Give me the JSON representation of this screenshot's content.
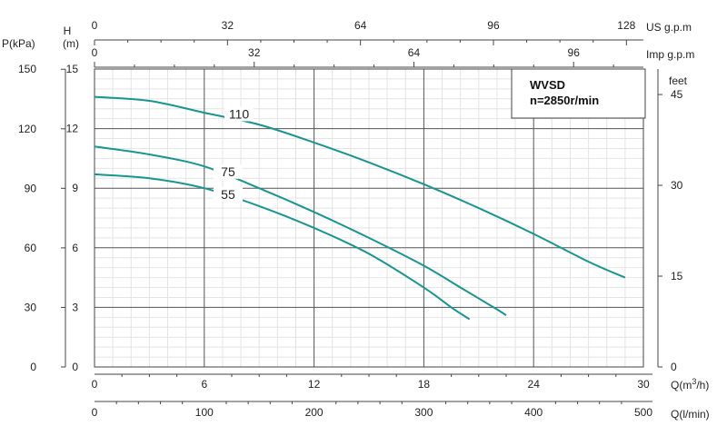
{
  "chart_data": {
    "type": "line",
    "title": "WVSD",
    "subtitle": "n=2850r/min",
    "x_axes": {
      "q_m3h": {
        "label": "Q(m³/h)",
        "range": [
          0,
          30
        ],
        "ticks": [
          0,
          6,
          12,
          18,
          24,
          30
        ]
      },
      "q_lmin": {
        "label": "Q(l/min)",
        "range": [
          0,
          500
        ],
        "ticks": [
          0,
          100,
          200,
          300,
          400,
          500
        ]
      },
      "us_gpm": {
        "label": "US g.p.m",
        "ticks": [
          0,
          32,
          64,
          96,
          128
        ]
      },
      "imp_gpm": {
        "label": "Imp g.p.m",
        "ticks": [
          0,
          32,
          64,
          96
        ]
      }
    },
    "y_axes": {
      "h_m": {
        "label_line1": "H",
        "label_line2": "(m)",
        "range": [
          0,
          15
        ],
        "ticks": [
          0,
          3,
          6,
          9,
          12,
          15
        ]
      },
      "p_kpa": {
        "label": "P(kPa)",
        "ticks": [
          0,
          30,
          60,
          90,
          120,
          150
        ]
      },
      "feet": {
        "label": "feet",
        "ticks": [
          0,
          15,
          30,
          45
        ]
      }
    },
    "grid": true,
    "series": [
      {
        "name": "110",
        "color": "#17958f",
        "points": [
          [
            0,
            13.6
          ],
          [
            3,
            13.4
          ],
          [
            6,
            12.8
          ],
          [
            9,
            12.2
          ],
          [
            12,
            11.3
          ],
          [
            15,
            10.3
          ],
          [
            18,
            9.2
          ],
          [
            21,
            8.0
          ],
          [
            24,
            6.7
          ],
          [
            27,
            5.3
          ],
          [
            29,
            4.5
          ]
        ]
      },
      {
        "name": "75",
        "color": "#17958f",
        "points": [
          [
            0,
            11.1
          ],
          [
            3,
            10.7
          ],
          [
            6,
            10.1
          ],
          [
            9,
            9.0
          ],
          [
            12,
            7.8
          ],
          [
            15,
            6.5
          ],
          [
            18,
            5.1
          ],
          [
            20,
            4.0
          ],
          [
            22,
            2.9
          ],
          [
            22.5,
            2.6
          ]
        ]
      },
      {
        "name": "55",
        "color": "#17958f",
        "points": [
          [
            0,
            9.7
          ],
          [
            3,
            9.5
          ],
          [
            6,
            9.0
          ],
          [
            9,
            8.1
          ],
          [
            12,
            7.0
          ],
          [
            15,
            5.7
          ],
          [
            18,
            4.0
          ],
          [
            19.5,
            3.0
          ],
          [
            20.5,
            2.4
          ]
        ]
      }
    ]
  }
}
